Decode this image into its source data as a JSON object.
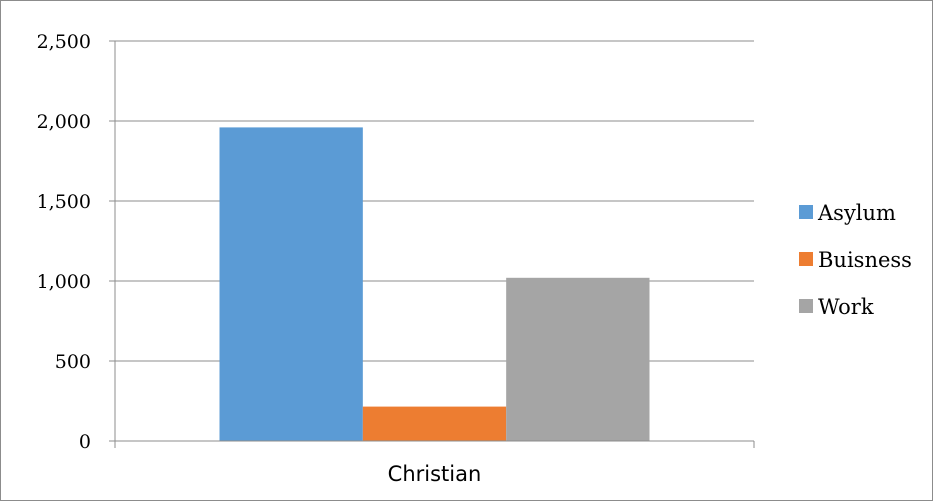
{
  "chart_data": {
    "type": "bar",
    "categories": [
      "Christian"
    ],
    "series": [
      {
        "name": "Asylum",
        "values": [
          1960
        ],
        "color": "#5b9bd5"
      },
      {
        "name": "Buisness",
        "values": [
          215
        ],
        "color": "#ed7d31"
      },
      {
        "name": "Work",
        "values": [
          1020
        ],
        "color": "#a5a5a5"
      }
    ],
    "title": "",
    "xlabel": "",
    "ylabel": "",
    "ylim": [
      0,
      2500
    ],
    "yticks": [
      0,
      500,
      1000,
      1500,
      2000,
      2500
    ],
    "ytick_labels": [
      "0",
      "500",
      "1,000",
      "1,500",
      "2,000",
      "2,500"
    ],
    "grid": true,
    "legend_position": "right",
    "gridline_color": "#8c8c8c"
  }
}
